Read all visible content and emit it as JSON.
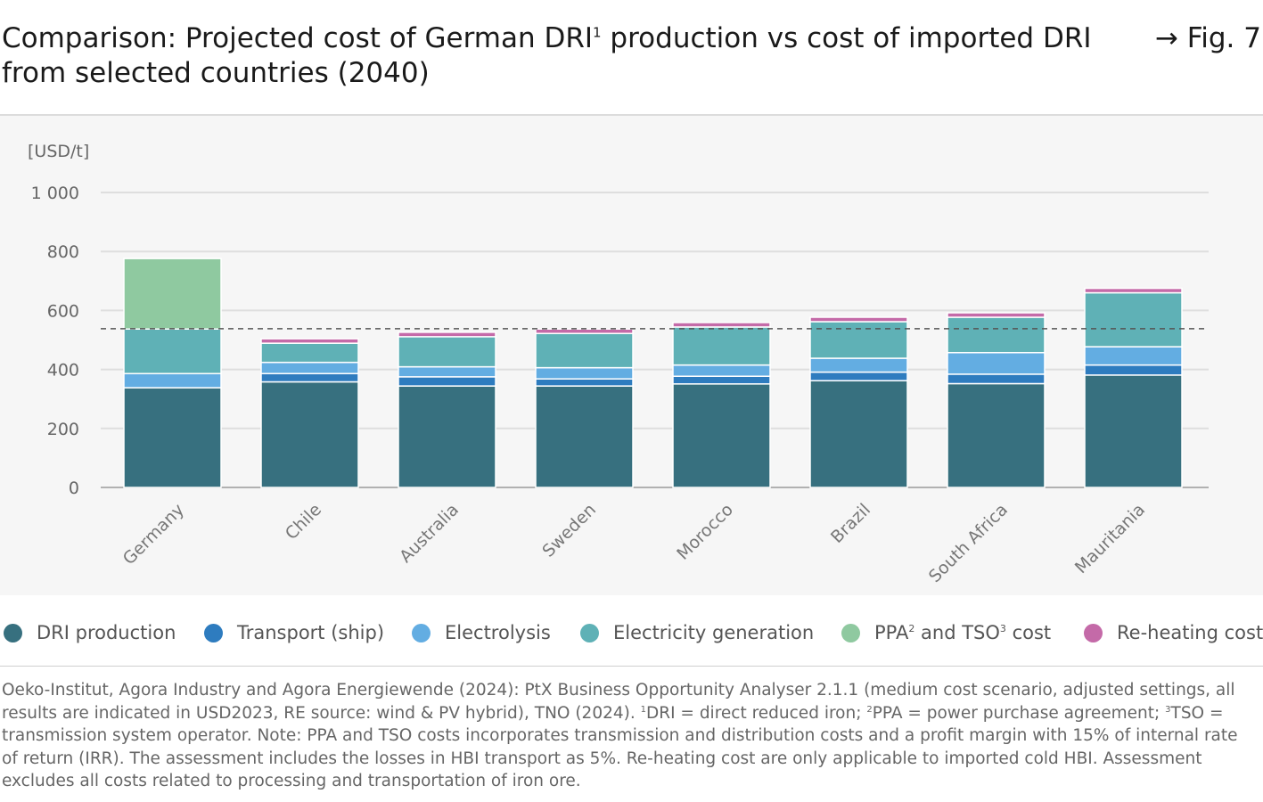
{
  "header": {
    "title_part1": "Comparison: Projected cost of German DRI",
    "title_sup": "1",
    "title_part2": " production vs cost of imported DRI from selected countries (2040)",
    "fig_ref": "→ Fig. 7"
  },
  "legend": [
    {
      "id": "dri",
      "label": "DRI production",
      "sup": "",
      "label_after": "",
      "sup2": "",
      "label_end": "",
      "color": "#37707f"
    },
    {
      "id": "transport",
      "label": "Transport (ship)",
      "sup": "",
      "label_after": "",
      "sup2": "",
      "label_end": "",
      "color": "#2e7cbf"
    },
    {
      "id": "electrolysis",
      "label": "Electrolysis",
      "sup": "",
      "label_after": "",
      "sup2": "",
      "label_end": "",
      "color": "#63ade2"
    },
    {
      "id": "elecgen",
      "label": "Electricity generation",
      "sup": "",
      "label_after": "",
      "sup2": "",
      "label_end": "",
      "color": "#5fb1b6"
    },
    {
      "id": "ppa",
      "label": "PPA",
      "sup": "2",
      "label_after": " and TSO",
      "sup2": "3",
      "label_end": " cost",
      "color": "#8fc9a0"
    },
    {
      "id": "reheat",
      "label": "Re-heating cost",
      "sup": "",
      "label_after": "",
      "sup2": "",
      "label_end": "",
      "color": "#c46aa8"
    }
  ],
  "source": {
    "part1": "Oeko-Institut, Agora Industry and Agora Energiewende (2024): PtX Business Opportunity Analyser 2.1.1 (medium cost scenario, adjusted settings, all results are indicated in USD2023, RE source: wind & PV hybrid), TNO (2024). ",
    "sup1": "1",
    "part2": "DRI = direct reduced iron; ",
    "sup2": "2",
    "part3": "PPA = power purchase agreement; ",
    "sup3": "3",
    "part4": "TSO = transmission system operator. Note: PPA and TSO costs incorporates transmission and distribution costs and a profit margin with 15% of internal rate of return (IRR). The assessment includes the losses in HBI transport as 5%. Re-heating cost are only applicable to imported cold HBI. Assessment excludes all costs related to processing and transportation of iron ore."
  },
  "chart_data": {
    "type": "bar",
    "stacked": true,
    "title": "Comparison: Projected cost of German DRI production vs cost of imported DRI from selected countries (2040)",
    "ylabel": "[USD/t]",
    "ylim": [
      0,
      1000
    ],
    "yticks": [
      0,
      200,
      400,
      600,
      800,
      1000
    ],
    "ytick_labels": [
      "0",
      "200",
      "400",
      "600",
      "800",
      "1 000"
    ],
    "grid": true,
    "reference_line": 538,
    "categories": [
      "Germany",
      "Chile",
      "Australia",
      "Sweden",
      "Morocco",
      "Brazil",
      "South Africa",
      "Mauritania"
    ],
    "series": [
      {
        "name": "DRI production",
        "color": "#37707f",
        "values": [
          338,
          358,
          344,
          344,
          351,
          362,
          352,
          381
        ]
      },
      {
        "name": "Transport (ship)",
        "color": "#2e7cbf",
        "values": [
          0,
          28,
          31,
          24,
          26,
          29,
          32,
          34
        ]
      },
      {
        "name": "Electrolysis",
        "color": "#63ade2",
        "values": [
          48,
          38,
          34,
          38,
          38,
          47,
          73,
          62
        ]
      },
      {
        "name": "Electricity generation",
        "color": "#5fb1b6",
        "values": [
          151,
          65,
          102,
          116,
          129,
          124,
          120,
          183
        ]
      },
      {
        "name": "PPA and TSO cost",
        "color": "#8fc9a0",
        "values": [
          239,
          0,
          0,
          0,
          0,
          0,
          0,
          0
        ]
      },
      {
        "name": "Re-heating cost",
        "color": "#c46aa8",
        "values": [
          0,
          15,
          15,
          15,
          15,
          15,
          15,
          15
        ]
      }
    ]
  }
}
